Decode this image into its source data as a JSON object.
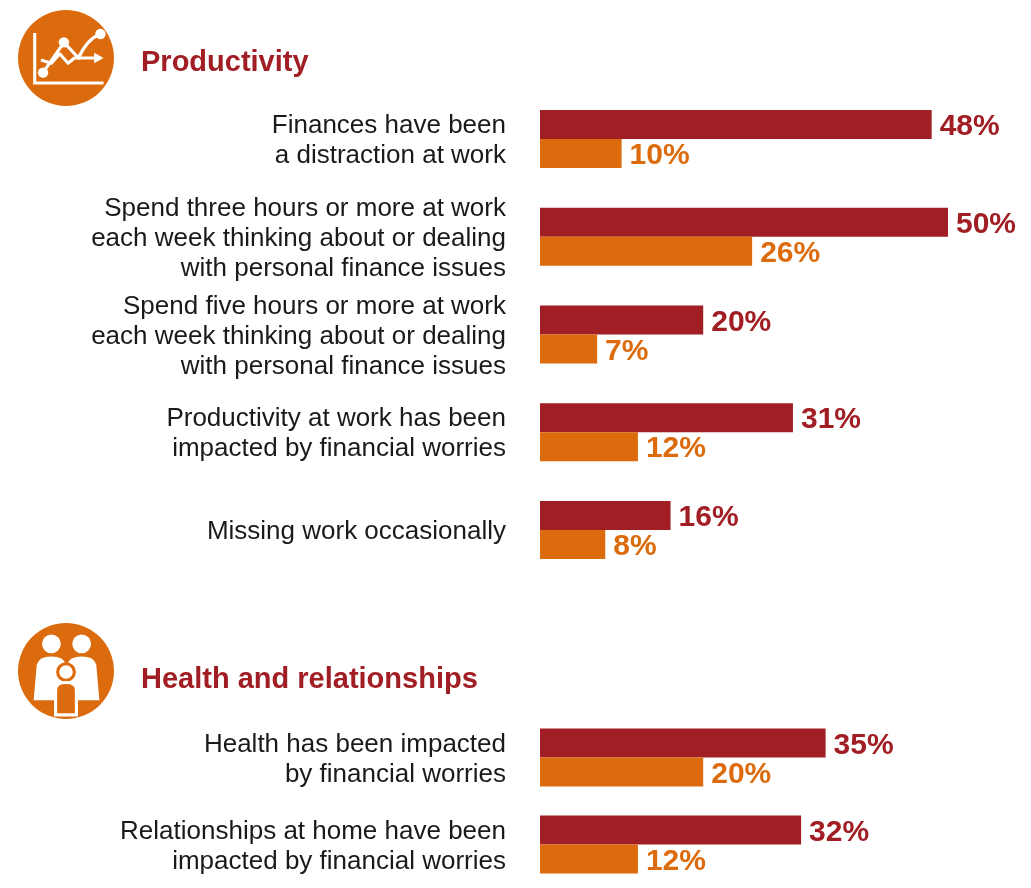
{
  "chart_data": [
    {
      "type": "bar",
      "orientation": "horizontal",
      "title": "Productivity",
      "categories": [
        "Finances have been a distraction at work",
        "Spend three hours or more at work each week thinking about or dealing with personal finance issues",
        "Spend five hours or more at work each week thinking about or dealing with personal finance issues",
        "Productivity at work has been impacted by financial worries",
        "Missing work occasionally"
      ],
      "series": [
        {
          "color": "#a11f24",
          "values": [
            48,
            50,
            20,
            31,
            16
          ],
          "value_labels": [
            "48%",
            "50%",
            "20%",
            "31%",
            "16%"
          ]
        },
        {
          "color": "#db6b0c",
          "values": [
            10,
            26,
            7,
            12,
            8
          ],
          "value_labels": [
            "10%",
            "26%",
            "7%",
            "12%",
            "8%"
          ]
        }
      ],
      "tick_labels": "y",
      "grid": false
    },
    {
      "type": "bar",
      "orientation": "horizontal",
      "title": "Health and relationships",
      "categories": [
        "Health has been impacted by financial worries",
        "Relationships at home have been impacted by financial worries"
      ],
      "series": [
        {
          "color": "#a11f24",
          "values": [
            35,
            32
          ],
          "value_labels": [
            "35%",
            "32%"
          ]
        },
        {
          "color": "#db6b0c",
          "values": [
            20,
            12
          ],
          "value_labels": [
            "20%",
            "12%"
          ]
        }
      ],
      "tick_labels": "y",
      "grid": false
    }
  ]
}
